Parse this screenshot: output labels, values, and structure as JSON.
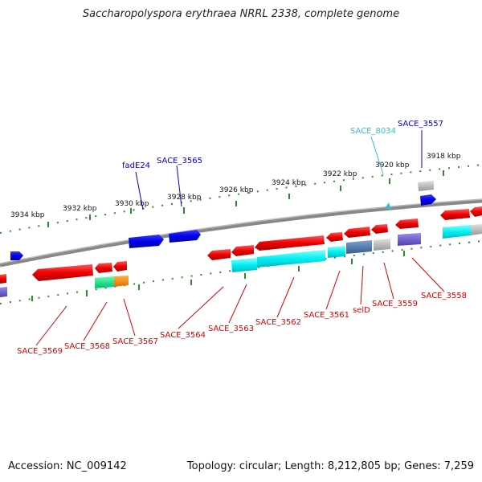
{
  "title": "Saccharopolyspora erythraea NRRL 2338, complete genome",
  "accession": "Accession: NC_009142",
  "topology": "Topology: circular; Length: 8,212,805 bp; Genes: 7,259",
  "ticks": [
    "3934 kbp",
    "3932 kbp",
    "3930 kbp",
    "3928 kbp",
    "3926 kbp",
    "3924 kbp",
    "3922 kbp",
    "3920 kbp",
    "3918 kbp"
  ],
  "top_labels": [
    {
      "text": "fadE24",
      "color": "#0000c0"
    },
    {
      "text": "SACE_3565",
      "color": "#0000c0"
    },
    {
      "text": "SACE_8034",
      "color": "#33bbdd"
    },
    {
      "text": "SACE_3557",
      "color": "#0000c0"
    }
  ],
  "bottom_labels": [
    {
      "text": "SACE_3569",
      "color": "#dd0000"
    },
    {
      "text": "SACE_3568",
      "color": "#dd0000"
    },
    {
      "text": "SACE_3567",
      "color": "#dd0000"
    },
    {
      "text": "SACE_3564",
      "color": "#dd0000"
    },
    {
      "text": "SACE_3563",
      "color": "#dd0000"
    },
    {
      "text": "SACE_3562",
      "color": "#dd0000"
    },
    {
      "text": "SACE_3561",
      "color": "#dd0000"
    },
    {
      "text": "selD",
      "color": "#dd0000"
    },
    {
      "text": "SACE_3559",
      "color": "#dd0000"
    },
    {
      "text": "SACE_3558",
      "color": "#dd0000"
    }
  ]
}
